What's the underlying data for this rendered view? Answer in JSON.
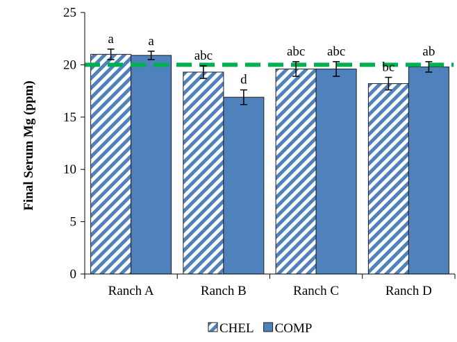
{
  "chart_data": {
    "type": "bar",
    "title": "",
    "xlabel": "",
    "ylabel": "Final Serum Mg (ppm)",
    "ylim": [
      0,
      25
    ],
    "yticks": [
      0,
      5,
      10,
      15,
      20,
      25
    ],
    "categories": [
      "Ranch A",
      "Ranch B",
      "Ranch C",
      "Ranch D"
    ],
    "series": [
      {
        "name": "CHEL",
        "pattern": "diagonal-stripes",
        "color": "#4f81bd",
        "values": [
          21.0,
          19.3,
          19.6,
          18.2
        ],
        "errors": [
          0.5,
          0.6,
          0.7,
          0.6
        ],
        "labels": [
          "a",
          "abc",
          "abc",
          "bc"
        ]
      },
      {
        "name": "COMP",
        "pattern": "solid",
        "color": "#4f81bd",
        "values": [
          20.9,
          16.9,
          19.6,
          19.8
        ],
        "errors": [
          0.4,
          0.7,
          0.7,
          0.5
        ],
        "labels": [
          "a",
          "d",
          "abc",
          "ab"
        ]
      }
    ],
    "reference_line": {
      "value": 20,
      "color": "#00b050",
      "style": "dashed"
    },
    "grid": false,
    "legend": "bottom"
  }
}
